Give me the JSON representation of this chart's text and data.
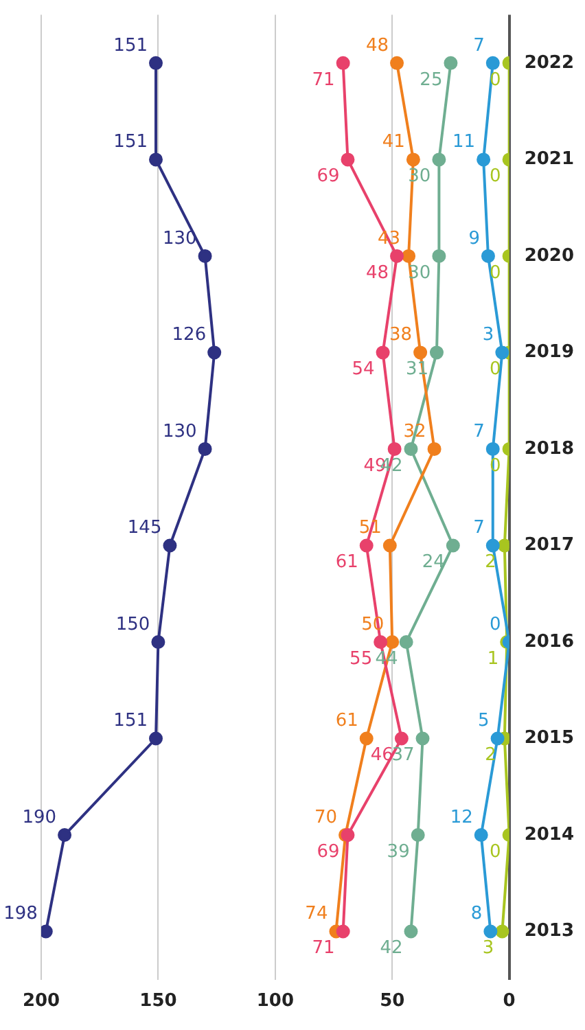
{
  "chart_data": {
    "type": "line",
    "orientation": "horizontal",
    "categories": [
      "2022",
      "2021",
      "2020",
      "2019",
      "2018",
      "2017",
      "2016",
      "2015",
      "2014",
      "2013"
    ],
    "series": [
      {
        "color": "#2e3182",
        "values": [
          151,
          151,
          130,
          126,
          130,
          145,
          150,
          151,
          190,
          198
        ]
      },
      {
        "color": "#e8416b",
        "values": [
          71,
          69,
          48,
          54,
          49,
          61,
          55,
          46,
          69,
          71
        ]
      },
      {
        "color": "#f07f1d",
        "values": [
          48,
          41,
          43,
          38,
          32,
          51,
          50,
          61,
          70,
          74
        ]
      },
      {
        "color": "#6fae91",
        "values": [
          25,
          30,
          30,
          31,
          42,
          24,
          44,
          37,
          39,
          42
        ]
      },
      {
        "color": "#2a9ad6",
        "values": [
          7,
          11,
          9,
          3,
          7,
          7,
          0,
          5,
          12,
          8
        ]
      },
      {
        "color": "#a8c520",
        "values": [
          0,
          0,
          0,
          0,
          0,
          2,
          1,
          2,
          0,
          3
        ]
      }
    ],
    "xlim": [
      200,
      0
    ],
    "xticks": [
      0,
      50,
      100,
      150,
      200
    ],
    "grid": "x",
    "legend": false,
    "marker": "circle",
    "line_style": "solid",
    "data_labels": true
  }
}
